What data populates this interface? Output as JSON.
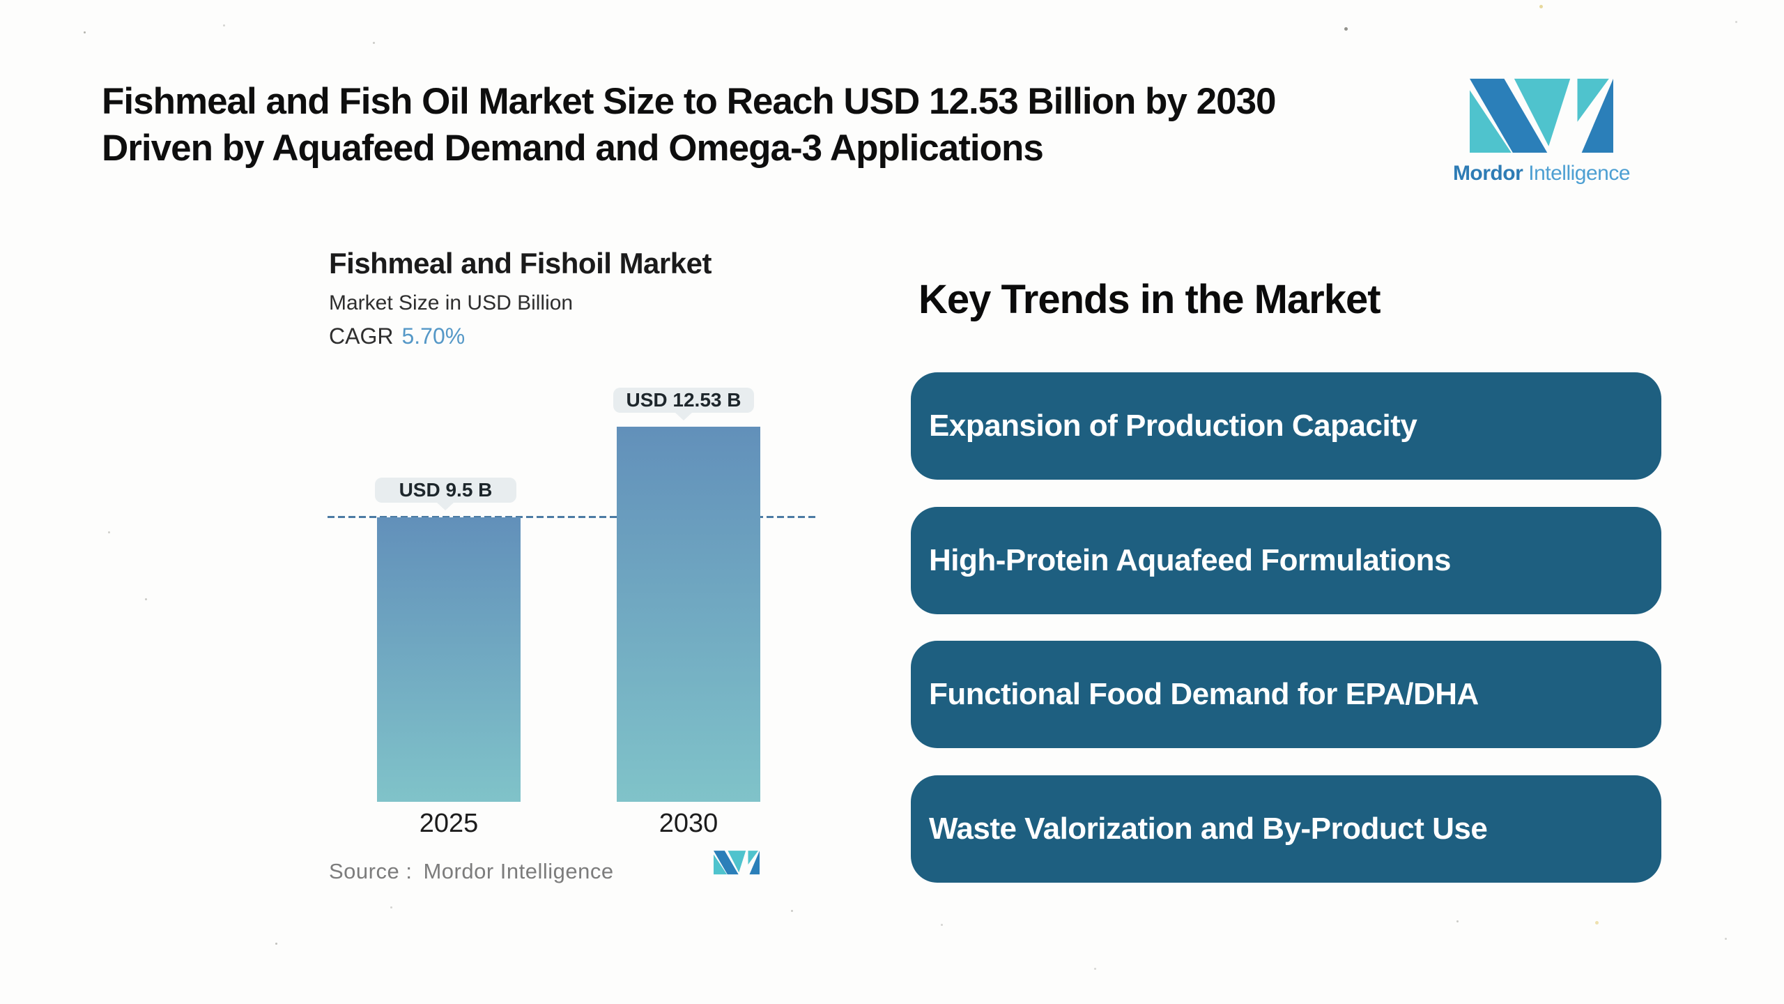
{
  "header": {
    "title_line1": "Fishmeal and Fish Oil Market Size to Reach USD 12.53 Billion by 2030",
    "title_line2": "Driven by Aquafeed Demand and Omega-3 Applications"
  },
  "brand": {
    "word1": "Mordor",
    "word2": "Intelligence",
    "colors": {
      "teal": "#4FC3CD",
      "blue": "#2B7FB9",
      "word1": "#2E7CB5",
      "word2": "#4D9FD2"
    }
  },
  "chart": {
    "title": "Fishmeal and Fishoil Market",
    "subtitle": "Market Size in USD Billion",
    "cagr_label": "CAGR",
    "cagr_value": "5.70%",
    "source_label": "Source :",
    "source_value": "Mordor Intelligence"
  },
  "chart_data": {
    "type": "bar",
    "title": "Fishmeal and Fishoil Market",
    "subtitle": "Market Size in USD Billion",
    "cagr_pct": 5.7,
    "unit": "USD Billion",
    "categories": [
      "2025",
      "2030"
    ],
    "values": [
      9.5,
      12.53
    ],
    "value_labels": [
      "USD 9.5 B",
      "USD 12.53 B"
    ],
    "baseline": {
      "value": 9.5,
      "style": "dashed"
    },
    "ylim": [
      0,
      13.5
    ],
    "grid": false,
    "legend": "none",
    "colors": {
      "bar_gradient_top": "#6290BA",
      "bar_gradient_bottom": "#80C3C9",
      "baseline_dash": "#4C7BA3",
      "value_label_bg": "#E8EDEF",
      "cagr_accent": "#5598C7"
    }
  },
  "trends": {
    "heading": "Key Trends in the Market",
    "box_color": "#1E5F80",
    "items": [
      {
        "label": "Expansion of Production Capacity"
      },
      {
        "label": "High-Protein Aquafeed Formulations"
      },
      {
        "label": "Functional Food Demand for EPA/DHA"
      },
      {
        "label": "Waste Valorization and By-Product Use"
      }
    ]
  }
}
